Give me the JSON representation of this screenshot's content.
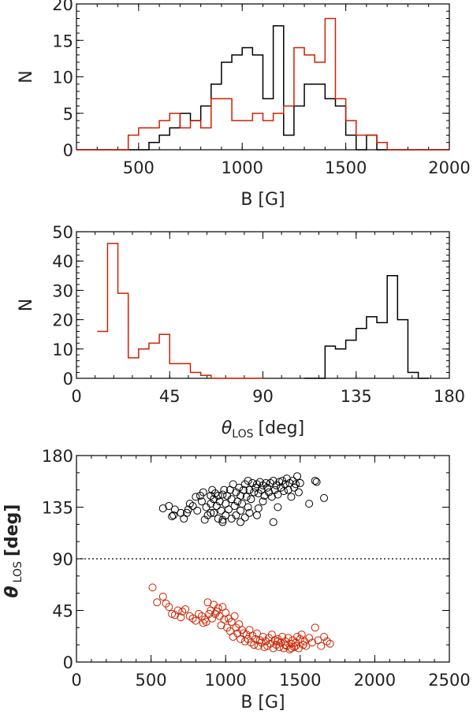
{
  "chart_data": [
    {
      "type": "histogram",
      "xlabel": "B [G]",
      "ylabel": "N",
      "xlim": [
        200,
        2000
      ],
      "ylim": [
        0,
        20
      ],
      "xticks": [
        500,
        1000,
        1500,
        2000
      ],
      "yticks": [
        0,
        5,
        10,
        15,
        20
      ],
      "bin_width": 50,
      "series": [
        {
          "name": "black",
          "color": "#000000",
          "edges": [
            200,
            550,
            600,
            650,
            700,
            750,
            800,
            850,
            900,
            950,
            1000,
            1050,
            1100,
            1150,
            1200,
            1250,
            1300,
            1350,
            1400,
            1450,
            1500,
            1550,
            1600,
            1650,
            2000
          ],
          "counts": [
            0,
            1,
            2,
            3,
            5,
            4,
            6,
            9,
            12,
            13,
            14,
            13,
            7,
            17,
            2,
            6,
            9,
            9,
            7,
            6,
            2,
            0,
            2,
            0
          ]
        },
        {
          "name": "red",
          "color": "#cc2200",
          "edges": [
            200,
            450,
            500,
            550,
            600,
            650,
            700,
            750,
            800,
            850,
            900,
            950,
            1000,
            1050,
            1100,
            1150,
            1200,
            1250,
            1300,
            1350,
            1400,
            1450,
            1500,
            1550,
            1600,
            1650,
            1700,
            2000
          ],
          "counts": [
            0,
            2,
            3,
            3,
            4,
            5,
            3,
            4,
            3,
            7,
            7,
            4,
            4,
            5,
            4,
            5,
            6,
            14,
            13,
            12,
            18,
            7,
            4,
            2,
            2,
            1,
            0
          ]
        }
      ]
    },
    {
      "type": "histogram",
      "xlabel_symbol": "θ",
      "xlabel_sub": "LOS",
      "xlabel_unit": "[deg]",
      "ylabel": "N",
      "xlim": [
        0,
        180
      ],
      "ylim": [
        0,
        50
      ],
      "xticks": [
        0,
        45,
        90,
        135,
        180
      ],
      "yticks": [
        0,
        10,
        20,
        30,
        40,
        50
      ],
      "bin_width": 5,
      "series": [
        {
          "name": "red",
          "color": "#cc2200",
          "edges": [
            10,
            15,
            20,
            25,
            30,
            35,
            40,
            45,
            50,
            55,
            60,
            65,
            90
          ],
          "counts": [
            16,
            46,
            29,
            7,
            10,
            12,
            15,
            5,
            5,
            2,
            1,
            0
          ]
        },
        {
          "name": "black",
          "color": "#000000",
          "edges": [
            110,
            120,
            125,
            130,
            135,
            140,
            145,
            150,
            155,
            160,
            165,
            170
          ],
          "counts": [
            0,
            11,
            10,
            13,
            17,
            21,
            19,
            35,
            20,
            2,
            0
          ]
        }
      ]
    },
    {
      "type": "scatter",
      "xlabel": "B [G]",
      "ylabel_symbol": "θ",
      "ylabel_sub": "LOS",
      "ylabel_unit": "[deg]",
      "xlim": [
        0,
        2500
      ],
      "ylim": [
        0,
        180
      ],
      "xticks": [
        0,
        500,
        1000,
        1500,
        2000,
        2500
      ],
      "yticks": [
        45,
        90,
        135,
        180
      ],
      "yticks_minor": [
        0
      ],
      "reference_line": {
        "y": 90,
        "style": "dotted"
      },
      "series": [
        {
          "name": "black",
          "color": "#000000",
          "points": [
            [
              580,
              134
            ],
            [
              620,
              136
            ],
            [
              640,
              127
            ],
            [
              650,
              128
            ],
            [
              660,
              133
            ],
            [
              700,
              130
            ],
            [
              720,
              125
            ],
            [
              740,
              130
            ],
            [
              750,
              133
            ],
            [
              760,
              138
            ],
            [
              780,
              136
            ],
            [
              800,
              144
            ],
            [
              810,
              132
            ],
            [
              830,
              145
            ],
            [
              840,
              140
            ],
            [
              850,
              148
            ],
            [
              860,
              124
            ],
            [
              870,
              135
            ],
            [
              880,
              128
            ],
            [
              900,
              145
            ],
            [
              900,
              138
            ],
            [
              910,
              150
            ],
            [
              920,
              142
            ],
            [
              920,
              130
            ],
            [
              930,
              147
            ],
            [
              940,
              136
            ],
            [
              950,
              145
            ],
            [
              950,
              125
            ],
            [
              960,
              140
            ],
            [
              970,
              132
            ],
            [
              980,
              146
            ],
            [
              980,
              122
            ],
            [
              990,
              150
            ],
            [
              1000,
              138
            ],
            [
              1000,
              128
            ],
            [
              1010,
              145
            ],
            [
              1020,
              133
            ],
            [
              1030,
              150
            ],
            [
              1040,
              142
            ],
            [
              1040,
              125
            ],
            [
              1050,
              155
            ],
            [
              1060,
              136
            ],
            [
              1070,
              148
            ],
            [
              1070,
              128
            ],
            [
              1080,
              140
            ],
            [
              1090,
              152
            ],
            [
              1100,
              145
            ],
            [
              1100,
              132
            ],
            [
              1110,
              138
            ],
            [
              1120,
              150
            ],
            [
              1130,
              155
            ],
            [
              1130,
              126
            ],
            [
              1140,
              144
            ],
            [
              1150,
              158
            ],
            [
              1150,
              135
            ],
            [
              1160,
              150
            ],
            [
              1170,
              142
            ],
            [
              1180,
              156
            ],
            [
              1190,
              148
            ],
            [
              1200,
              152
            ],
            [
              1210,
              155
            ],
            [
              1220,
              147
            ],
            [
              1220,
              134
            ],
            [
              1230,
              157
            ],
            [
              1240,
              150
            ],
            [
              1250,
              154
            ],
            [
              1260,
              145
            ],
            [
              1270,
              156
            ],
            [
              1280,
              152
            ],
            [
              1290,
              148
            ],
            [
              1300,
              156
            ],
            [
              1310,
              144
            ],
            [
              1320,
              158
            ],
            [
              1330,
              150
            ],
            [
              1340,
              154
            ],
            [
              1350,
              146
            ],
            [
              1360,
              157
            ],
            [
              1370,
              152
            ],
            [
              1380,
              158
            ],
            [
              1390,
              149
            ],
            [
              1400,
              155
            ],
            [
              1410,
              160
            ],
            [
              1420,
              150
            ],
            [
              1430,
              156
            ],
            [
              1440,
              144
            ],
            [
              1450,
              158
            ],
            [
              1460,
              152
            ],
            [
              1470,
              155
            ],
            [
              1480,
              162
            ],
            [
              1490,
              148
            ],
            [
              1500,
              156
            ],
            [
              1320,
              122
            ],
            [
              1560,
              138
            ],
            [
              1600,
              158
            ],
            [
              1610,
              157
            ],
            [
              1660,
              143
            ],
            [
              1210,
              128
            ],
            [
              1100,
              122
            ],
            [
              980,
              124
            ],
            [
              900,
              130
            ],
            [
              1160,
              130
            ],
            [
              1250,
              140
            ],
            [
              1350,
              135
            ]
          ]
        },
        {
          "name": "red",
          "color": "#cc2200",
          "points": [
            [
              510,
              65
            ],
            [
              540,
              52
            ],
            [
              580,
              57
            ],
            [
              600,
              51
            ],
            [
              620,
              48
            ],
            [
              640,
              42
            ],
            [
              660,
              41
            ],
            [
              680,
              45
            ],
            [
              700,
              39
            ],
            [
              710,
              44
            ],
            [
              730,
              46
            ],
            [
              760,
              40
            ],
            [
              780,
              38
            ],
            [
              800,
              36
            ],
            [
              820,
              42
            ],
            [
              840,
              40
            ],
            [
              850,
              34
            ],
            [
              860,
              37
            ],
            [
              870,
              35
            ],
            [
              880,
              52
            ],
            [
              890,
              42
            ],
            [
              900,
              45
            ],
            [
              910,
              38
            ],
            [
              920,
              50
            ],
            [
              930,
              42
            ],
            [
              940,
              44
            ],
            [
              950,
              47
            ],
            [
              960,
              40
            ],
            [
              970,
              32
            ],
            [
              980,
              48
            ],
            [
              990,
              37
            ],
            [
              1000,
              43
            ],
            [
              1010,
              30
            ],
            [
              1020,
              38
            ],
            [
              1030,
              27
            ],
            [
              1040,
              35
            ],
            [
              1050,
              22
            ],
            [
              1060,
              40
            ],
            [
              1070,
              30
            ],
            [
              1080,
              25
            ],
            [
              1090,
              33
            ],
            [
              1100,
              20
            ],
            [
              1110,
              28
            ],
            [
              1120,
              25
            ],
            [
              1130,
              18
            ],
            [
              1140,
              24
            ],
            [
              1150,
              20
            ],
            [
              1160,
              28
            ],
            [
              1170,
              17
            ],
            [
              1180,
              23
            ],
            [
              1190,
              15
            ],
            [
              1200,
              20
            ],
            [
              1210,
              25
            ],
            [
              1220,
              14
            ],
            [
              1230,
              19
            ],
            [
              1240,
              17
            ],
            [
              1250,
              22
            ],
            [
              1260,
              13
            ],
            [
              1270,
              18
            ],
            [
              1280,
              14
            ],
            [
              1290,
              21
            ],
            [
              1300,
              16
            ],
            [
              1310,
              24
            ],
            [
              1320,
              12
            ],
            [
              1330,
              19
            ],
            [
              1340,
              15
            ],
            [
              1350,
              20
            ],
            [
              1360,
              13
            ],
            [
              1370,
              17
            ],
            [
              1380,
              22
            ],
            [
              1390,
              12
            ],
            [
              1400,
              18
            ],
            [
              1410,
              14
            ],
            [
              1420,
              21
            ],
            [
              1430,
              11
            ],
            [
              1440,
              16
            ],
            [
              1450,
              19
            ],
            [
              1460,
              13
            ],
            [
              1470,
              17
            ],
            [
              1480,
              22
            ],
            [
              1490,
              12
            ],
            [
              1500,
              20
            ],
            [
              1510,
              24
            ],
            [
              1520,
              15
            ],
            [
              1530,
              18
            ],
            [
              1540,
              14
            ],
            [
              1560,
              21
            ],
            [
              1580,
              17
            ],
            [
              1600,
              30
            ],
            [
              1620,
              19
            ],
            [
              1640,
              14
            ],
            [
              1660,
              22
            ],
            [
              1680,
              18
            ],
            [
              1700,
              16
            ],
            [
              1440,
              12
            ],
            [
              1470,
              14
            ],
            [
              1400,
              15
            ],
            [
              1350,
              18
            ]
          ]
        }
      ]
    }
  ]
}
